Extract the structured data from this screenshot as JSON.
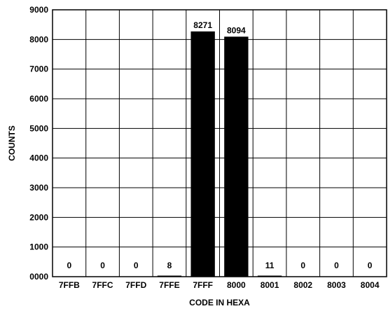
{
  "chart_data": {
    "type": "bar",
    "categories": [
      "7FFB",
      "7FFC",
      "7FFD",
      "7FFE",
      "7FFF",
      "8000",
      "8001",
      "8002",
      "8003",
      "8004"
    ],
    "values": [
      0,
      0,
      0,
      8,
      8271,
      8094,
      11,
      0,
      0,
      0
    ],
    "data_labels": [
      "0",
      "0",
      "0",
      "8",
      "8271",
      "8094",
      "11",
      "0",
      "0",
      "0"
    ],
    "xlabel": "CODE IN HEXA",
    "ylabel": "COUNTS",
    "ylim": [
      0,
      9000
    ],
    "yticks": [
      "0000",
      "1000",
      "2000",
      "3000",
      "4000",
      "5000",
      "6000",
      "7000",
      "8000",
      "9000"
    ],
    "grid": true,
    "bar_color": "#000000"
  }
}
